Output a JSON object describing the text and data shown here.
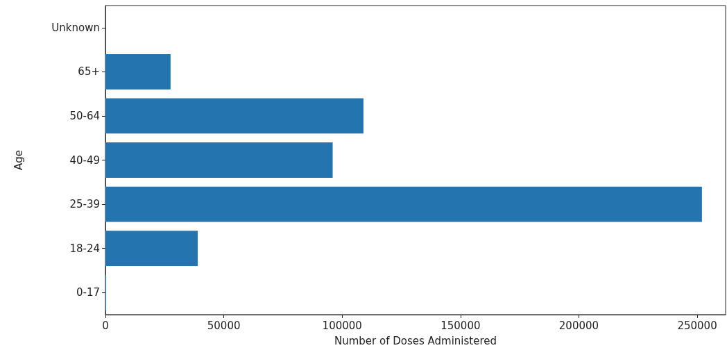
{
  "chart_data": {
    "type": "bar",
    "orientation": "horizontal",
    "xlabel": "Number of Doses Administered",
    "ylabel": "Age",
    "categories": [
      "Unknown",
      "65+",
      "50-64",
      "40-49",
      "25-39",
      "18-24",
      "0-17"
    ],
    "values": [
      0,
      27500,
      109000,
      96000,
      252000,
      39000,
      300
    ],
    "color": "#2474b0",
    "xlim": [
      0,
      262000
    ],
    "xticks": [
      0,
      50000,
      100000,
      150000,
      200000,
      250000
    ],
    "grid": false
  }
}
